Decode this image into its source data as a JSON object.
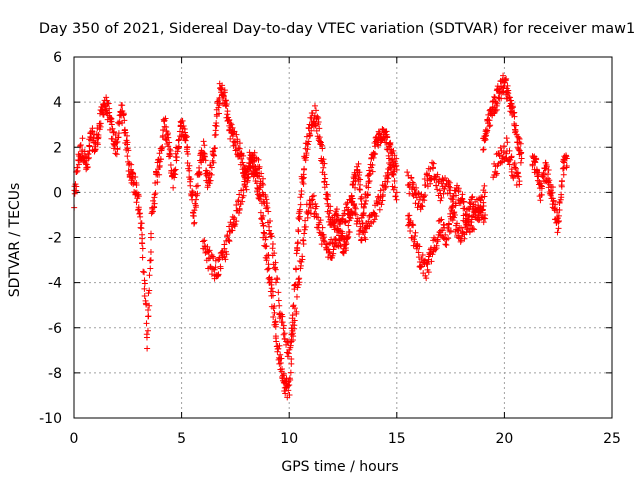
{
  "chart_data": {
    "type": "scatter",
    "title": "Day 350 of 2021, Sidereal Day-to-day VTEC variation (SDTVAR) for receiver maw1",
    "xlabel": "GPS time / hours",
    "ylabel": "SDTVAR / TECUs",
    "xlim": [
      0,
      25
    ],
    "ylim": [
      -10,
      6
    ],
    "xticks": [
      0,
      5,
      10,
      15,
      20,
      25
    ],
    "yticks": [
      -10,
      -8,
      -6,
      -4,
      -2,
      0,
      2,
      4,
      6
    ],
    "grid": true,
    "legend": "none",
    "marker": "+",
    "series": [
      {
        "name": "SDTVAR",
        "color": "#ff0000",
        "segments": [
          {
            "x": [
              0.0,
              0.2,
              0.4,
              0.6,
              0.8,
              1.0,
              1.2,
              1.4,
              1.6,
              1.8,
              2.0,
              2.2,
              2.4,
              2.6,
              2.8,
              3.0,
              3.2,
              3.4,
              3.6,
              3.8,
              4.0,
              4.2,
              4.4,
              4.6,
              4.8,
              5.0,
              5.2,
              5.4,
              5.6,
              5.8,
              6.0,
              6.2,
              6.4,
              6.6,
              6.8,
              7.0,
              7.2,
              7.4,
              7.6,
              7.8,
              8.0,
              8.2,
              8.4,
              8.6,
              8.8,
              9.0,
              9.2,
              9.4,
              9.6,
              9.8,
              10.0,
              10.2,
              10.4,
              10.6,
              10.8,
              11.0,
              11.2,
              11.4,
              11.6,
              11.8,
              12.0,
              12.2,
              12.4,
              12.6,
              12.8,
              13.0,
              13.2,
              13.4,
              13.6,
              13.8,
              14.0,
              14.2,
              14.4,
              14.6,
              14.8,
              15.0
            ],
            "y": [
              -0.5,
              1.5,
              2.0,
              1.0,
              2.5,
              2.0,
              3.0,
              4.0,
              3.5,
              2.5,
              2.0,
              3.8,
              2.5,
              1.0,
              0.5,
              -0.5,
              -2.5,
              -6.5,
              -1.5,
              0.5,
              1.5,
              3.0,
              2.0,
              0.5,
              2.0,
              3.0,
              2.5,
              0.5,
              -1.0,
              1.0,
              2.0,
              0.5,
              1.0,
              3.0,
              4.5,
              4.2,
              3.0,
              2.5,
              2.0,
              1.5,
              0.5,
              1.5,
              1.0,
              0.0,
              -1.5,
              -3.0,
              -4.5,
              -6.5,
              -7.5,
              -8.5,
              -8.8,
              -5.0,
              -2.0,
              0.5,
              2.0,
              3.0,
              3.5,
              2.5,
              1.0,
              -0.5,
              -1.5,
              -1.0,
              -2.0,
              -2.5,
              -1.5,
              0.5,
              1.0,
              -1.0,
              0.0,
              1.0,
              2.0,
              2.5,
              2.8,
              2.0,
              1.5,
              1.0
            ]
          },
          {
            "x": [
              6.0,
              6.3,
              6.6,
              6.9,
              7.2,
              7.5,
              7.8,
              8.1,
              8.4,
              8.7,
              9.0,
              9.3,
              9.6,
              9.9,
              10.2,
              10.5,
              10.8,
              11.1,
              11.4,
              11.7,
              12.0,
              12.3,
              12.6,
              12.9,
              13.2,
              13.5,
              13.8,
              14.1,
              14.4,
              14.7,
              15.0
            ],
            "y": [
              -2.5,
              -3.0,
              -3.5,
              -3.0,
              -2.0,
              -1.0,
              0.0,
              1.0,
              1.5,
              0.5,
              -1.0,
              -3.0,
              -5.5,
              -7.0,
              -6.0,
              -3.5,
              -1.0,
              -0.5,
              -1.5,
              -2.5,
              -2.5,
              -2.0,
              -1.0,
              -0.5,
              -1.5,
              -2.0,
              -1.0,
              -0.5,
              0.0,
              1.0,
              0.0
            ]
          },
          {
            "x": [
              15.5,
              15.8,
              16.1,
              16.4,
              16.7,
              17.0,
              17.3,
              17.6,
              17.9,
              18.2,
              18.5,
              18.8,
              19.1
            ],
            "y": [
              -1.0,
              -2.0,
              -3.0,
              -3.5,
              -2.5,
              -1.5,
              -2.0,
              -1.0,
              -2.0,
              -1.5,
              -0.5,
              -1.0,
              0.0
            ]
          },
          {
            "x": [
              15.5,
              15.8,
              16.1,
              16.4,
              16.7,
              17.0,
              17.3,
              17.6,
              17.9,
              18.2,
              18.5,
              18.8,
              19.1
            ],
            "y": [
              0.5,
              0.0,
              -0.5,
              0.5,
              1.0,
              0.0,
              0.5,
              -0.5,
              0.0,
              -1.0,
              -1.5,
              -0.5,
              -1.0
            ]
          },
          {
            "x": [
              19.0,
              19.2,
              19.4,
              19.6,
              19.8,
              20.0,
              20.2,
              20.4,
              20.6,
              20.8
            ],
            "y": [
              2.0,
              2.8,
              3.5,
              4.0,
              4.5,
              5.0,
              4.2,
              3.5,
              2.5,
              1.5
            ]
          },
          {
            "x": [
              19.5,
              19.8,
              20.1,
              20.4,
              20.7
            ],
            "y": [
              1.0,
              1.5,
              2.0,
              1.0,
              0.5
            ]
          },
          {
            "x": [
              21.3,
              21.5,
              21.7,
              21.9,
              22.1,
              22.3,
              22.5,
              22.7,
              22.9
            ],
            "y": [
              1.5,
              1.0,
              0.0,
              1.0,
              0.5,
              -0.5,
              -1.5,
              1.0,
              1.5
            ]
          }
        ]
      }
    ]
  }
}
